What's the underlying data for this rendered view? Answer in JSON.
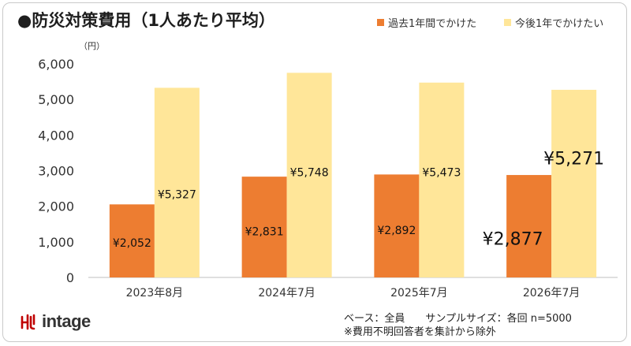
{
  "header": {
    "title": "●防災対策費用（1人あたり平均）",
    "unit": "（円）"
  },
  "legend": [
    {
      "label": "過去1年間でかけた",
      "color": "#ED7D31"
    },
    {
      "label": "今後1年でかけたい",
      "color": "#FFE699"
    }
  ],
  "footnotes": {
    "base": "ベース：全員　　サンプルサイズ：各回 n=5000",
    "note": "※費用不明回答者を集計から除外"
  },
  "logo": {
    "text": "intage",
    "color": "#C00000"
  },
  "chart_data": {
    "type": "bar",
    "categories": [
      "2023年8月",
      "2024年7月",
      "2025年7月",
      "2026年7月"
    ],
    "series": [
      {
        "name": "過去1年間でかけた",
        "color": "#ED7D31",
        "values": [
          2052,
          2831,
          2892,
          2877
        ],
        "labels": [
          "¥2,052",
          "¥2,831",
          "¥2,892",
          "¥2,877"
        ]
      },
      {
        "name": "今後1年でかけたい",
        "color": "#FFE699",
        "values": [
          5327,
          5748,
          5473,
          5271
        ],
        "labels": [
          "¥5,327",
          "¥5,748",
          "¥5,473",
          "¥5,271"
        ]
      }
    ],
    "yticks": [
      "0",
      "1,000",
      "2,000",
      "3,000",
      "4,000",
      "5,000",
      "6,000"
    ],
    "ylim": [
      0,
      6000
    ],
    "grid": false,
    "legend_position": "top-right"
  }
}
